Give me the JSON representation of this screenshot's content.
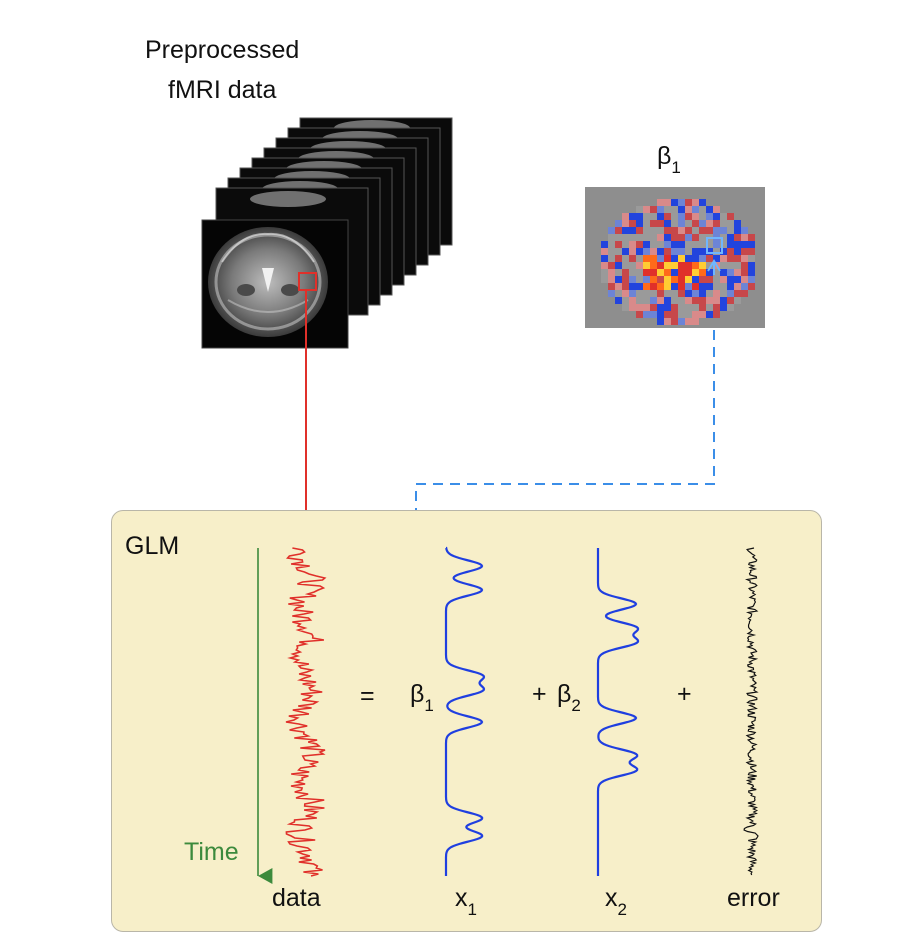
{
  "title": {
    "line1": "Preprocessed",
    "line2": "fMRI data"
  },
  "beta_map": {
    "label": "β",
    "subscript": "1"
  },
  "glm": {
    "label": "GLM",
    "time_label": "Time",
    "data_label": "data",
    "equals": "=",
    "beta1": {
      "symbol": "β",
      "subscript": "1"
    },
    "plus1": "+",
    "beta2": {
      "symbol": "β",
      "subscript": "2"
    },
    "plus2": "+",
    "x1": {
      "symbol": "x",
      "subscript": "1"
    },
    "x2": {
      "symbol": "x",
      "subscript": "2"
    },
    "error_label": "error"
  },
  "colors": {
    "data_trace": "#e0302a",
    "regressor_trace": "#1f3fe0",
    "error_trace": "#111111",
    "time_arrow": "#3c8a3c",
    "beta_link": "#3b8ee8",
    "voxel_link": "#e0302a",
    "glm_background": "#f7efc9"
  }
}
